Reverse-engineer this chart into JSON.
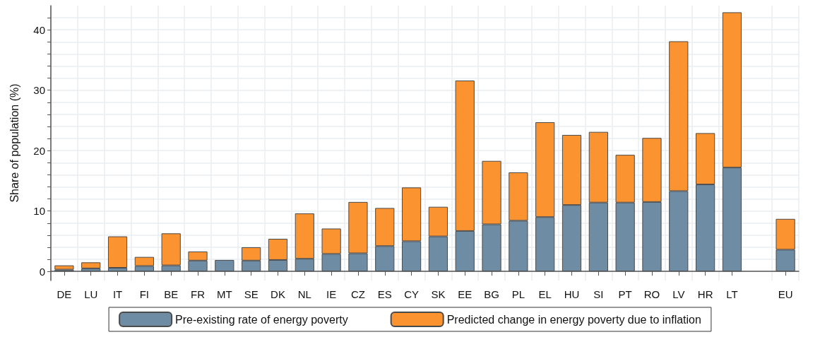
{
  "chart_data": {
    "type": "bar",
    "stacked": true,
    "ylabel": "Share of population (%)",
    "categories": [
      "DE",
      "LU",
      "IT",
      "FI",
      "BE",
      "FR",
      "MT",
      "SE",
      "DK",
      "NL",
      "IE",
      "CZ",
      "ES",
      "CY",
      "SK",
      "EE",
      "BG",
      "PL",
      "EL",
      "HU",
      "SI",
      "PT",
      "RO",
      "LV",
      "HR",
      "LT",
      null,
      "EU"
    ],
    "series": [
      {
        "name": "Pre-existing rate of energy poverty",
        "color": "#6f8ca5",
        "values": [
          0.3,
          0.5,
          0.6,
          0.9,
          1.0,
          1.8,
          1.9,
          1.8,
          1.9,
          2.1,
          2.9,
          3.0,
          4.2,
          5.0,
          5.8,
          6.7,
          7.8,
          8.4,
          9.0,
          11.0,
          11.4,
          11.4,
          11.5,
          13.3,
          14.4,
          17.2,
          null,
          3.6
        ]
      },
      {
        "name": "Predicted change in energy poverty due to inflation",
        "color": "#fb9330",
        "values": [
          0.7,
          1.0,
          5.2,
          1.5,
          5.3,
          1.5,
          null,
          2.2,
          3.5,
          7.5,
          4.2,
          8.5,
          6.3,
          8.9,
          4.9,
          24.9,
          10.5,
          8.0,
          15.7,
          11.6,
          11.7,
          7.9,
          10.6,
          24.8,
          8.5,
          25.7,
          null,
          5.1
        ]
      }
    ],
    "ylim": [
      -1.5,
      44
    ],
    "yticks": [
      0,
      {
        "value": 2,
        "label": null
      },
      {
        "value": 4,
        "label": null
      },
      {
        "value": 6,
        "label": null
      },
      {
        "value": 8,
        "label": null
      },
      10,
      {
        "value": 12,
        "label": null
      },
      {
        "value": 14,
        "label": null
      },
      {
        "value": 16,
        "label": null
      },
      {
        "value": 18,
        "label": null
      },
      20,
      {
        "value": 22,
        "label": null
      },
      {
        "value": 24,
        "label": null
      },
      {
        "value": 26,
        "label": null
      },
      {
        "value": 28,
        "label": null
      },
      30,
      {
        "value": 32,
        "label": null
      },
      {
        "value": 34,
        "label": null
      },
      {
        "value": 36,
        "label": null
      },
      {
        "value": 38,
        "label": null
      },
      40,
      {
        "value": 42,
        "label": null
      }
    ],
    "grid": true,
    "legend": "bottom"
  }
}
